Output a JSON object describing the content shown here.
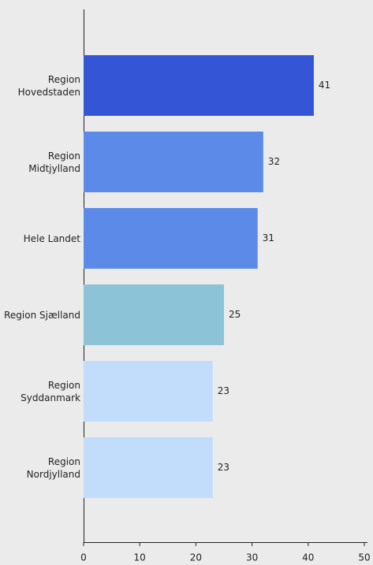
{
  "chart_data": {
    "type": "bar",
    "orientation": "horizontal",
    "categories": [
      "Region Hovedstaden",
      "Region Midtjylland",
      "Hele Landet",
      "Region Sjælland",
      "Region Syddanmark",
      "Region Nordjylland"
    ],
    "values": [
      41,
      32,
      31,
      25,
      23,
      23
    ],
    "colors": [
      "#3456d6",
      "#5b8ae8",
      "#5b8ae8",
      "#8cc3d6",
      "#c2ddfb",
      "#c2ddfb"
    ],
    "xlim": [
      0,
      50
    ],
    "xticks": [
      0,
      10,
      20,
      30,
      40,
      50
    ]
  }
}
